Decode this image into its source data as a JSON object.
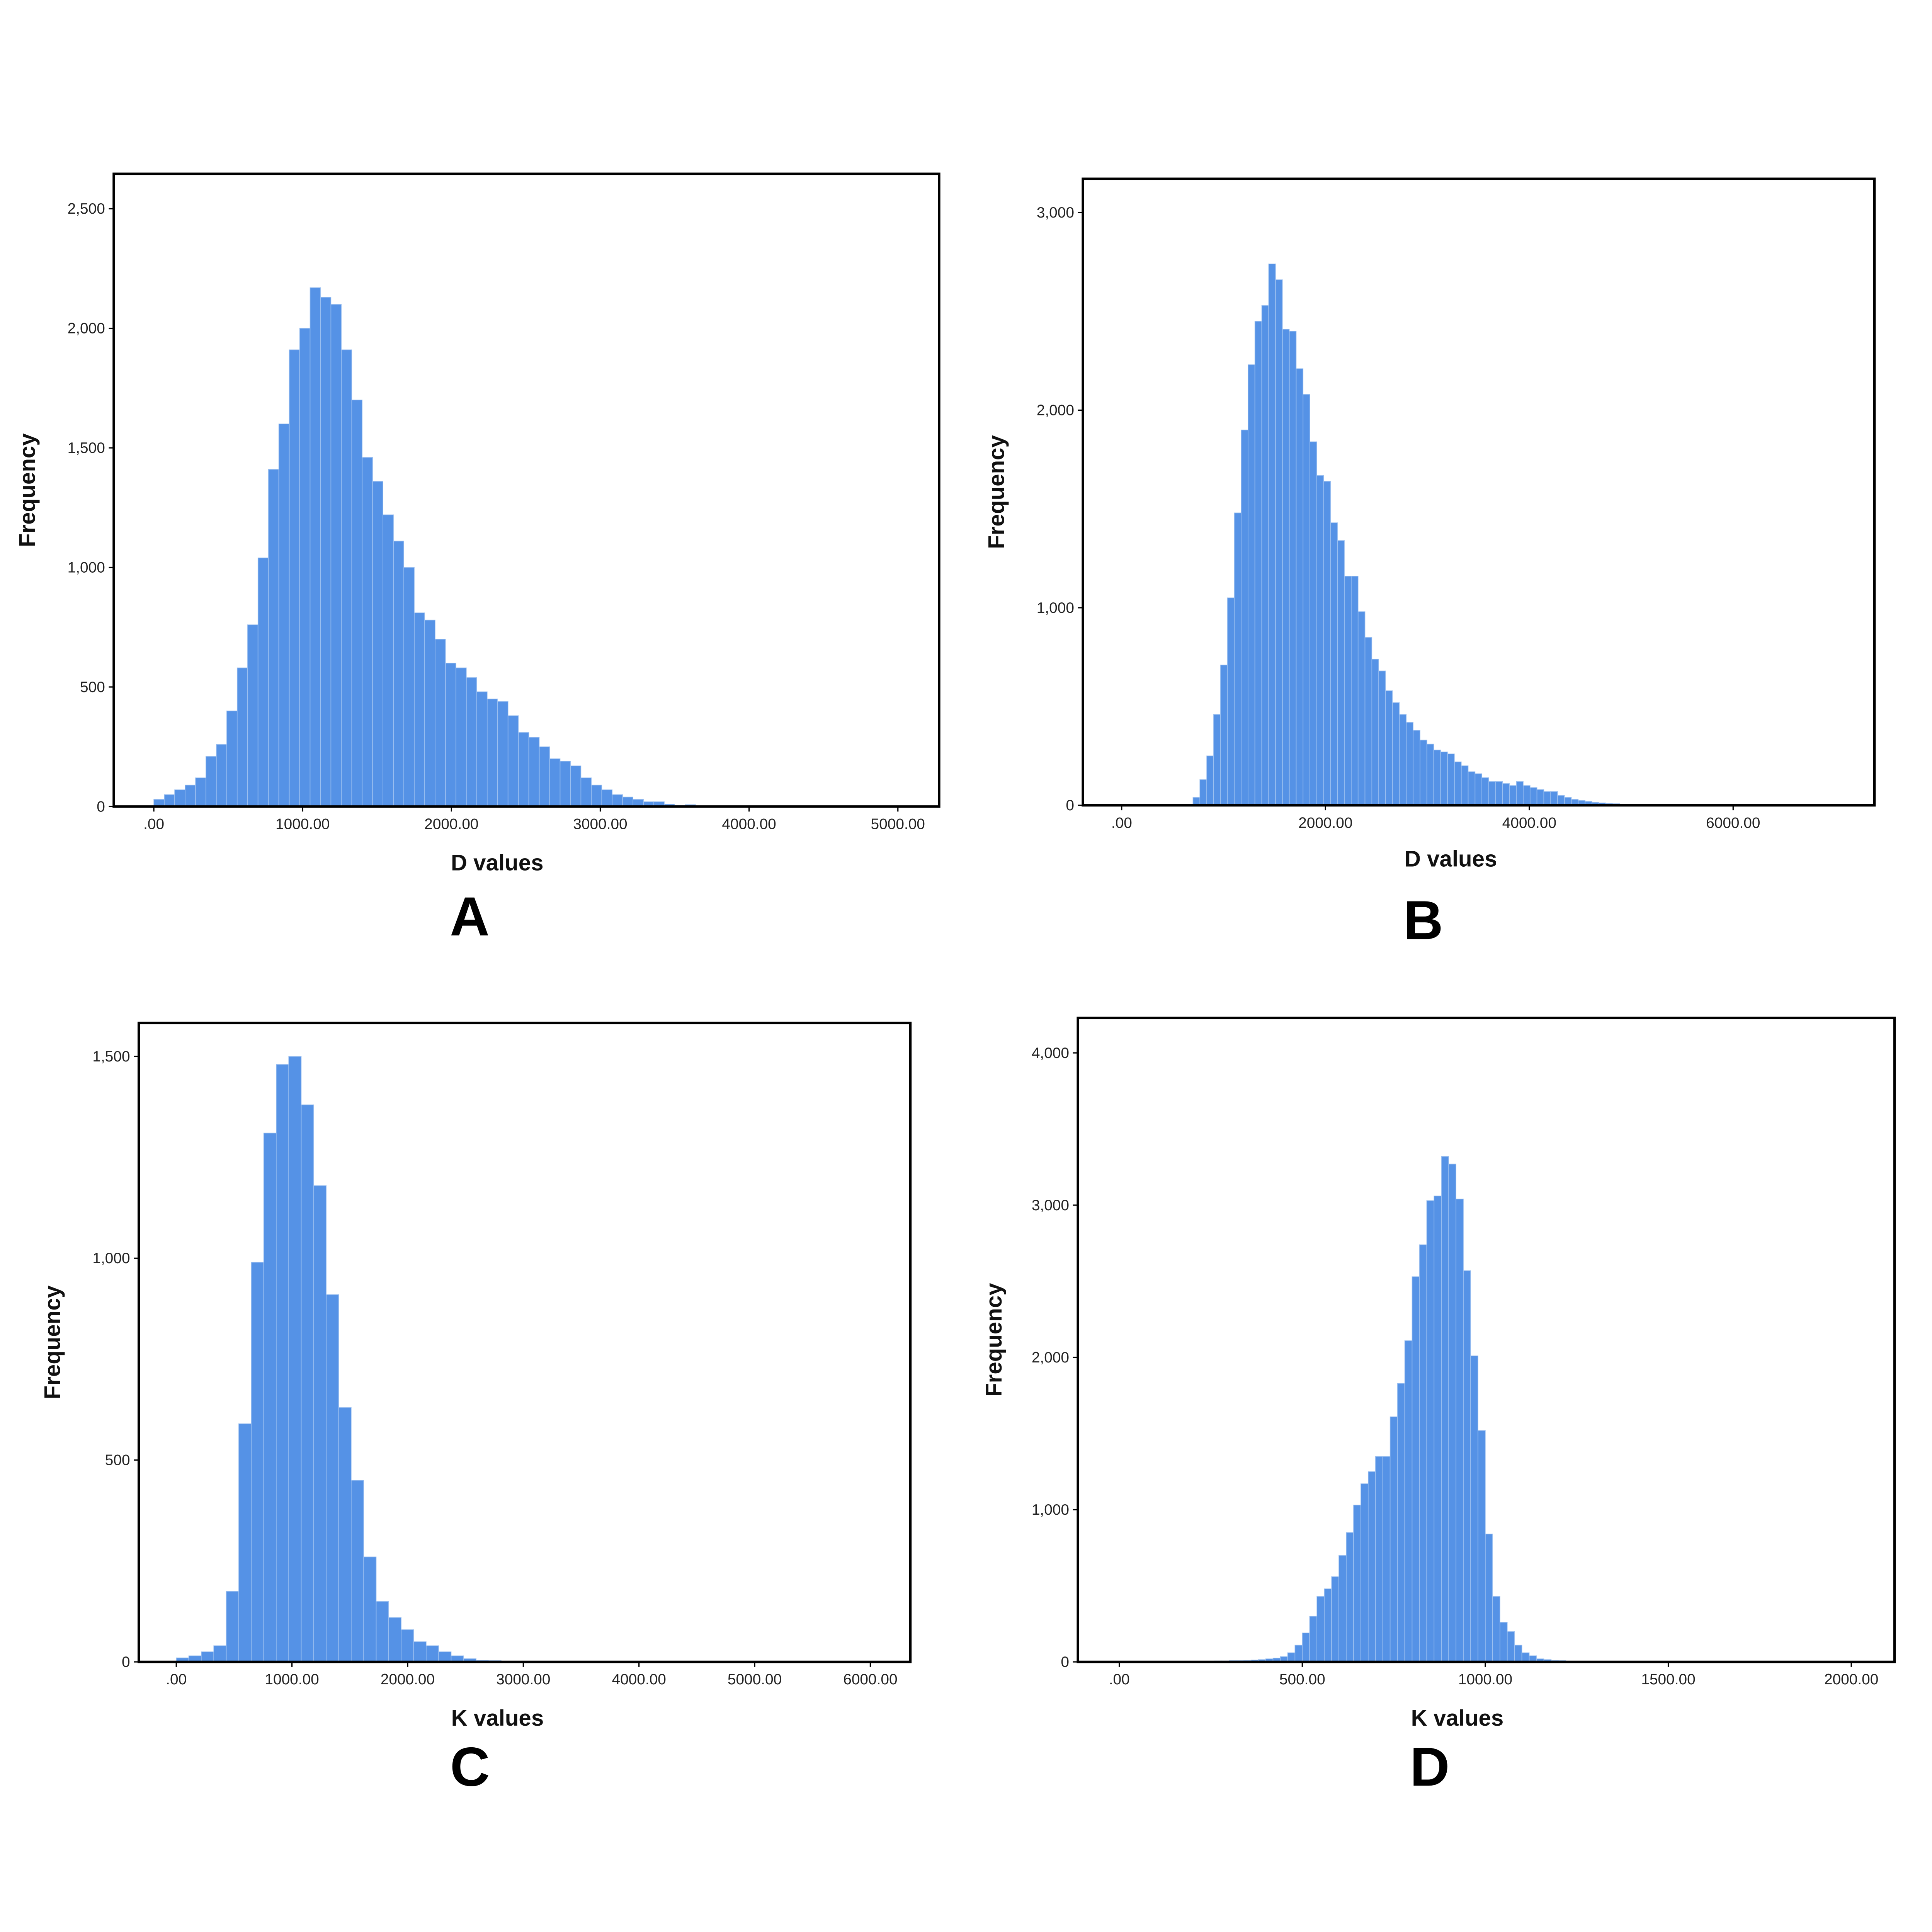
{
  "chart_data": [
    {
      "type": "histogram",
      "label": "A",
      "x_label": "D values",
      "y_label": "Frequency",
      "color": "#5592e6",
      "xlim": [
        -269,
        5277
      ],
      "ylim": [
        0,
        2646
      ],
      "xticks": [
        {
          "value": 0,
          "label": ".00"
        },
        {
          "value": 1000,
          "label": "1000.00"
        },
        {
          "value": 2000,
          "label": "2000.00"
        },
        {
          "value": 3000,
          "label": "3000.00"
        },
        {
          "value": 4000,
          "label": "4000.00"
        },
        {
          "value": 5000,
          "label": "5000.00"
        }
      ],
      "yticks": [
        0,
        500,
        {
          "value": 1000,
          "label": "1,000"
        },
        {
          "value": 1500,
          "label": "1,500"
        },
        {
          "value": 2000,
          "label": "2,000"
        },
        {
          "value": 2500,
          "label": "2,500"
        }
      ],
      "bins": [
        0,
        70,
        140,
        210,
        280,
        350,
        420,
        490,
        560,
        630,
        700,
        770,
        840,
        910,
        980,
        1050,
        1120,
        1190,
        1260,
        1330,
        1400,
        1470,
        1540,
        1610,
        1680,
        1750,
        1820,
        1890,
        1960,
        2030,
        2100,
        2170,
        2240,
        2310,
        2380,
        2450,
        2520,
        2590,
        2660,
        2730,
        2800,
        2870,
        2940,
        3010,
        3080,
        3150,
        3220,
        3290,
        3360,
        3430,
        3500,
        3570,
        3640,
        3710
      ],
      "counts": [
        30,
        50,
        70,
        90,
        120,
        210,
        260,
        400,
        580,
        760,
        1040,
        1410,
        1600,
        1910,
        2000,
        2170,
        2130,
        2100,
        1910,
        1700,
        1460,
        1360,
        1220,
        1110,
        1000,
        810,
        780,
        700,
        600,
        580,
        540,
        480,
        450,
        440,
        380,
        310,
        290,
        250,
        200,
        190,
        170,
        120,
        90,
        70,
        50,
        40,
        30,
        20,
        20,
        10,
        5,
        8,
        3
      ]
    },
    {
      "type": "histogram",
      "label": "B",
      "x_label": "D values",
      "y_label": "Frequency",
      "color": "#5592e6",
      "xlim": [
        -380,
        7387
      ],
      "ylim": [
        0,
        3171
      ],
      "xticks": [
        {
          "value": 0,
          "label": ".00"
        },
        {
          "value": 2000,
          "label": "2000.00"
        },
        {
          "value": 4000,
          "label": "4000.00"
        },
        {
          "value": 6000,
          "label": "6000.00"
        }
      ],
      "yticks": [
        0,
        {
          "value": 1000,
          "label": "1,000"
        },
        {
          "value": 2000,
          "label": "2,000"
        },
        {
          "value": 3000,
          "label": "3,000"
        }
      ],
      "bins": [
        700,
        767.5,
        835,
        902.5,
        970,
        1037.5,
        1105,
        1172.5,
        1240,
        1307.5,
        1375,
        1442.5,
        1510,
        1577.5,
        1645,
        1712.5,
        1780,
        1847.5,
        1915,
        1982.5,
        2050,
        2117.5,
        2185,
        2252.5,
        2320,
        2387.5,
        2455,
        2522.5,
        2590,
        2657.5,
        2725,
        2792.5,
        2860,
        2927.5,
        2995,
        3062.5,
        3130,
        3197.5,
        3265,
        3332.5,
        3400,
        3467.5,
        3535,
        3602.5,
        3670,
        3737.5,
        3805,
        3872.5,
        3940,
        4007.5,
        4075,
        4142.5,
        4210,
        4277.5,
        4345,
        4412.5,
        4480,
        4547.5,
        4615,
        4682.5,
        4750,
        4817.5,
        4885,
        4952.5,
        5020,
        5087.5
      ],
      "counts": [
        40,
        130,
        250,
        460,
        710,
        1050,
        1480,
        1900,
        2230,
        2450,
        2530,
        2740,
        2660,
        2410,
        2400,
        2210,
        2080,
        1840,
        1670,
        1640,
        1430,
        1340,
        1160,
        1160,
        980,
        850,
        740,
        680,
        580,
        520,
        460,
        420,
        380,
        330,
        310,
        280,
        270,
        260,
        220,
        200,
        170,
        160,
        140,
        120,
        120,
        110,
        100,
        120,
        100,
        90,
        80,
        70,
        70,
        50,
        40,
        30,
        25,
        20,
        15,
        12,
        10,
        8,
        6,
        5,
        3
      ]
    },
    {
      "type": "histogram",
      "label": "C",
      "x_label": "K values",
      "y_label": "Frequency",
      "color": "#5592e6",
      "xlim": [
        -324,
        6346
      ],
      "ylim": [
        0,
        1583
      ],
      "xticks": [
        {
          "value": 0,
          "label": ".00"
        },
        {
          "value": 1000,
          "label": "1000.00"
        },
        {
          "value": 2000,
          "label": "2000.00"
        },
        {
          "value": 3000,
          "label": "3000.00"
        },
        {
          "value": 4000,
          "label": "4000.00"
        },
        {
          "value": 5000,
          "label": "5000.00"
        },
        {
          "value": 6000,
          "label": "6000.00"
        }
      ],
      "yticks": [
        0,
        500,
        {
          "value": 1000,
          "label": "1,000"
        },
        {
          "value": 1500,
          "label": "1,500"
        }
      ],
      "bins": [
        0,
        108,
        216,
        324,
        432,
        540,
        648,
        756,
        864,
        972,
        1080,
        1188,
        1296,
        1404,
        1512,
        1620,
        1728,
        1836,
        1944,
        2052,
        2160,
        2268,
        2376,
        2484,
        2592,
        2700,
        2808,
        2916,
        3024,
        3132
      ],
      "counts": [
        10,
        15,
        25,
        40,
        175,
        590,
        990,
        1310,
        1480,
        1500,
        1380,
        1180,
        910,
        630,
        450,
        260,
        150,
        110,
        80,
        50,
        40,
        25,
        15,
        8,
        4,
        3,
        2,
        2,
        1
      ]
    },
    {
      "type": "histogram",
      "label": "D",
      "x_label": "K values",
      "y_label": "Frequency",
      "color": "#5592e6",
      "xlim": [
        -113,
        2118
      ],
      "ylim": [
        0,
        4230
      ],
      "xticks": [
        {
          "value": 0,
          "label": ".00"
        },
        {
          "value": 500,
          "label": "500.00"
        },
        {
          "value": 1000,
          "label": "1000.00"
        },
        {
          "value": 1500,
          "label": "1500.00"
        },
        {
          "value": 2000,
          "label": "2000.00"
        }
      ],
      "yticks": [
        0,
        {
          "value": 1000,
          "label": "1,000"
        },
        {
          "value": 2000,
          "label": "2,000"
        },
        {
          "value": 3000,
          "label": "3,000"
        },
        {
          "value": 4000,
          "label": "4,000"
        }
      ],
      "bins": [
        100,
        120,
        140,
        160,
        180,
        200,
        220,
        240,
        260,
        280,
        300,
        320,
        340,
        360,
        380,
        400,
        420,
        440,
        460,
        480,
        500,
        520,
        540,
        560,
        580,
        600,
        620,
        640,
        660,
        680,
        700,
        720,
        740,
        760,
        780,
        800,
        820,
        840,
        860,
        880,
        900,
        920,
        940,
        960,
        980,
        1000,
        1020,
        1040,
        1060,
        1080,
        1100,
        1120,
        1140,
        1160,
        1180,
        1200,
        1220,
        1240,
        1260
      ],
      "counts": [
        2,
        2,
        3,
        3,
        3,
        4,
        4,
        5,
        6,
        6,
        8,
        8,
        10,
        12,
        15,
        20,
        25,
        35,
        60,
        110,
        190,
        300,
        430,
        480,
        560,
        700,
        850,
        1030,
        1170,
        1250,
        1350,
        1350,
        1610,
        1830,
        2110,
        2530,
        2740,
        3030,
        3060,
        3320,
        3270,
        3040,
        2570,
        2010,
        1520,
        840,
        430,
        260,
        200,
        110,
        60,
        40,
        20,
        15,
        10,
        8,
        5,
        3
      ]
    }
  ]
}
